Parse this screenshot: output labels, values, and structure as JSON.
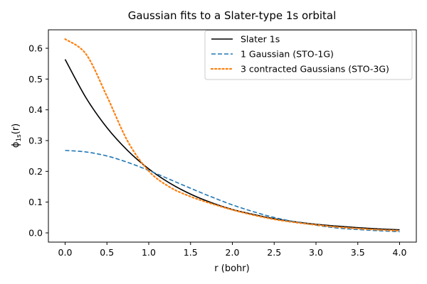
{
  "chart_data": {
    "type": "line",
    "title": "Gaussian fits to a Slater-type 1s orbital",
    "xlabel": "r (bohr)",
    "ylabel": {
      "main": "ϕ",
      "sub": "1s",
      "suffix": "(r)"
    },
    "xlim": [
      -0.2,
      4.2
    ],
    "ylim": [
      -0.03,
      0.66
    ],
    "x_ticks": [
      0.0,
      0.5,
      1.0,
      1.5,
      2.0,
      2.5,
      3.0,
      3.5,
      4.0
    ],
    "x_tick_labels": [
      "0.0",
      "0.5",
      "1.0",
      "1.5",
      "2.0",
      "2.5",
      "3.0",
      "3.5",
      "4.0"
    ],
    "y_ticks": [
      0.0,
      0.1,
      0.2,
      0.3,
      0.4,
      0.5,
      0.6
    ],
    "y_tick_labels": [
      "0.0",
      "0.1",
      "0.2",
      "0.3",
      "0.4",
      "0.5",
      "0.6"
    ],
    "grid": false,
    "legend_position": "top-right",
    "x": [
      0.0,
      0.25,
      0.5,
      0.75,
      1.0,
      1.25,
      1.5,
      1.75,
      2.0,
      2.25,
      2.5,
      2.75,
      3.0,
      3.25,
      3.5,
      3.75,
      4.0
    ],
    "series": [
      {
        "name": "Slater 1s",
        "color": "#000000",
        "dash": "solid",
        "values": [
          0.564,
          0.439,
          0.342,
          0.267,
          0.208,
          0.162,
          0.126,
          0.098,
          0.076,
          0.06,
          0.046,
          0.036,
          0.028,
          0.022,
          0.017,
          0.013,
          0.01
        ]
      },
      {
        "name": "1 Gaussian (STO-1G)",
        "color": "#1f77b4",
        "dash": "dashed",
        "values": [
          0.268,
          0.263,
          0.25,
          0.229,
          0.203,
          0.174,
          0.145,
          0.117,
          0.091,
          0.069,
          0.05,
          0.036,
          0.025,
          0.016,
          0.011,
          0.007,
          0.004
        ]
      },
      {
        "name": "3 contracted Gaussians (STO-3G)",
        "color": "#ff7f0e",
        "dash": "dotted",
        "values": [
          0.63,
          0.581,
          0.444,
          0.297,
          0.201,
          0.149,
          0.118,
          0.095,
          0.075,
          0.058,
          0.044,
          0.034,
          0.026,
          0.019,
          0.014,
          0.01,
          0.007
        ]
      }
    ]
  }
}
